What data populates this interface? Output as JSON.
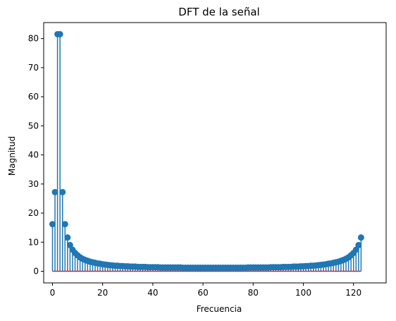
{
  "chart_data": {
    "type": "stem",
    "title": "DFT de la señal",
    "xlabel": "Frecuencia",
    "ylabel": "Magnitud",
    "xlim": [
      -3.5,
      133
    ],
    "ylim": [
      -4,
      85.5
    ],
    "x_ticks": [
      0,
      20,
      40,
      60,
      80,
      100,
      120
    ],
    "y_ticks": [
      0,
      10,
      20,
      30,
      40,
      50,
      60,
      70,
      80
    ],
    "grid": false,
    "legend": "none",
    "colors": {
      "stem": "#1f77b4",
      "baseline": "#d62728",
      "axes": "#000000"
    },
    "series": [
      {
        "x_start": 0,
        "values": [
          16.2,
          27.2,
          81.5,
          81.5,
          27.2,
          16.2,
          11.6,
          9.0,
          7.4,
          6.3,
          5.5,
          4.8,
          4.3,
          3.9,
          3.6,
          3.3,
          3.1,
          2.9,
          2.7,
          2.6,
          2.4,
          2.3,
          2.2,
          2.1,
          2.0,
          1.9,
          1.9,
          1.8,
          1.8,
          1.7,
          1.7,
          1.6,
          1.6,
          1.6,
          1.5,
          1.5,
          1.5,
          1.5,
          1.4,
          1.4,
          1.4,
          1.4,
          1.4,
          1.3,
          1.3,
          1.3,
          1.3,
          1.3,
          1.3,
          1.3,
          1.3,
          1.3,
          1.2,
          1.2,
          1.2,
          1.2,
          1.2,
          1.2,
          1.2,
          1.2,
          1.2,
          1.2,
          1.2,
          1.2,
          1.2,
          1.2,
          1.2,
          1.2,
          1.2,
          1.2,
          1.2,
          1.2,
          1.2,
          1.2,
          1.2,
          1.2,
          1.2,
          1.2,
          1.3,
          1.3,
          1.3,
          1.3,
          1.3,
          1.3,
          1.3,
          1.3,
          1.3,
          1.4,
          1.4,
          1.4,
          1.4,
          1.4,
          1.5,
          1.5,
          1.5,
          1.5,
          1.6,
          1.6,
          1.6,
          1.7,
          1.7,
          1.8,
          1.8,
          1.9,
          1.9,
          2.0,
          2.1,
          2.2,
          2.3,
          2.4,
          2.6,
          2.7,
          2.9,
          3.1,
          3.3,
          3.6,
          3.9,
          4.3,
          4.8,
          5.5,
          6.3,
          7.4,
          9.0,
          11.6
        ]
      }
    ]
  }
}
